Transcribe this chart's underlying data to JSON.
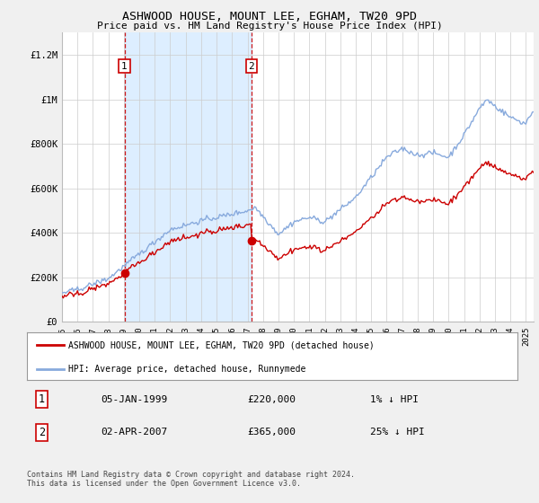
{
  "title": "ASHWOOD HOUSE, MOUNT LEE, EGHAM, TW20 9PD",
  "subtitle": "Price paid vs. HM Land Registry's House Price Index (HPI)",
  "ylim": [
    0,
    1300000
  ],
  "yticks": [
    0,
    200000,
    400000,
    600000,
    800000,
    1000000,
    1200000
  ],
  "ytick_labels": [
    "£0",
    "£200K",
    "£400K",
    "£600K",
    "£800K",
    "£1M",
    "£1.2M"
  ],
  "sale1_year": 1999.04,
  "sale1_price": 220000,
  "sale1_date_str": "05-JAN-1999",
  "sale1_pct": "1% ↓ HPI",
  "sale2_year": 2007.25,
  "sale2_price": 365000,
  "sale2_date_str": "02-APR-2007",
  "sale2_pct": "25% ↓ HPI",
  "line_color_sale": "#cc0000",
  "line_color_hpi": "#88aadd",
  "shade_color": "#ddeeff",
  "background_color": "#f0f0f0",
  "plot_bg_color": "#ffffff",
  "legend_label_sale": "ASHWOOD HOUSE, MOUNT LEE, EGHAM, TW20 9PD (detached house)",
  "legend_label_hpi": "HPI: Average price, detached house, Runnymede",
  "footer": "Contains HM Land Registry data © Crown copyright and database right 2024.\nThis data is licensed under the Open Government Licence v3.0.",
  "xmin": 1995,
  "xmax": 2025.5
}
